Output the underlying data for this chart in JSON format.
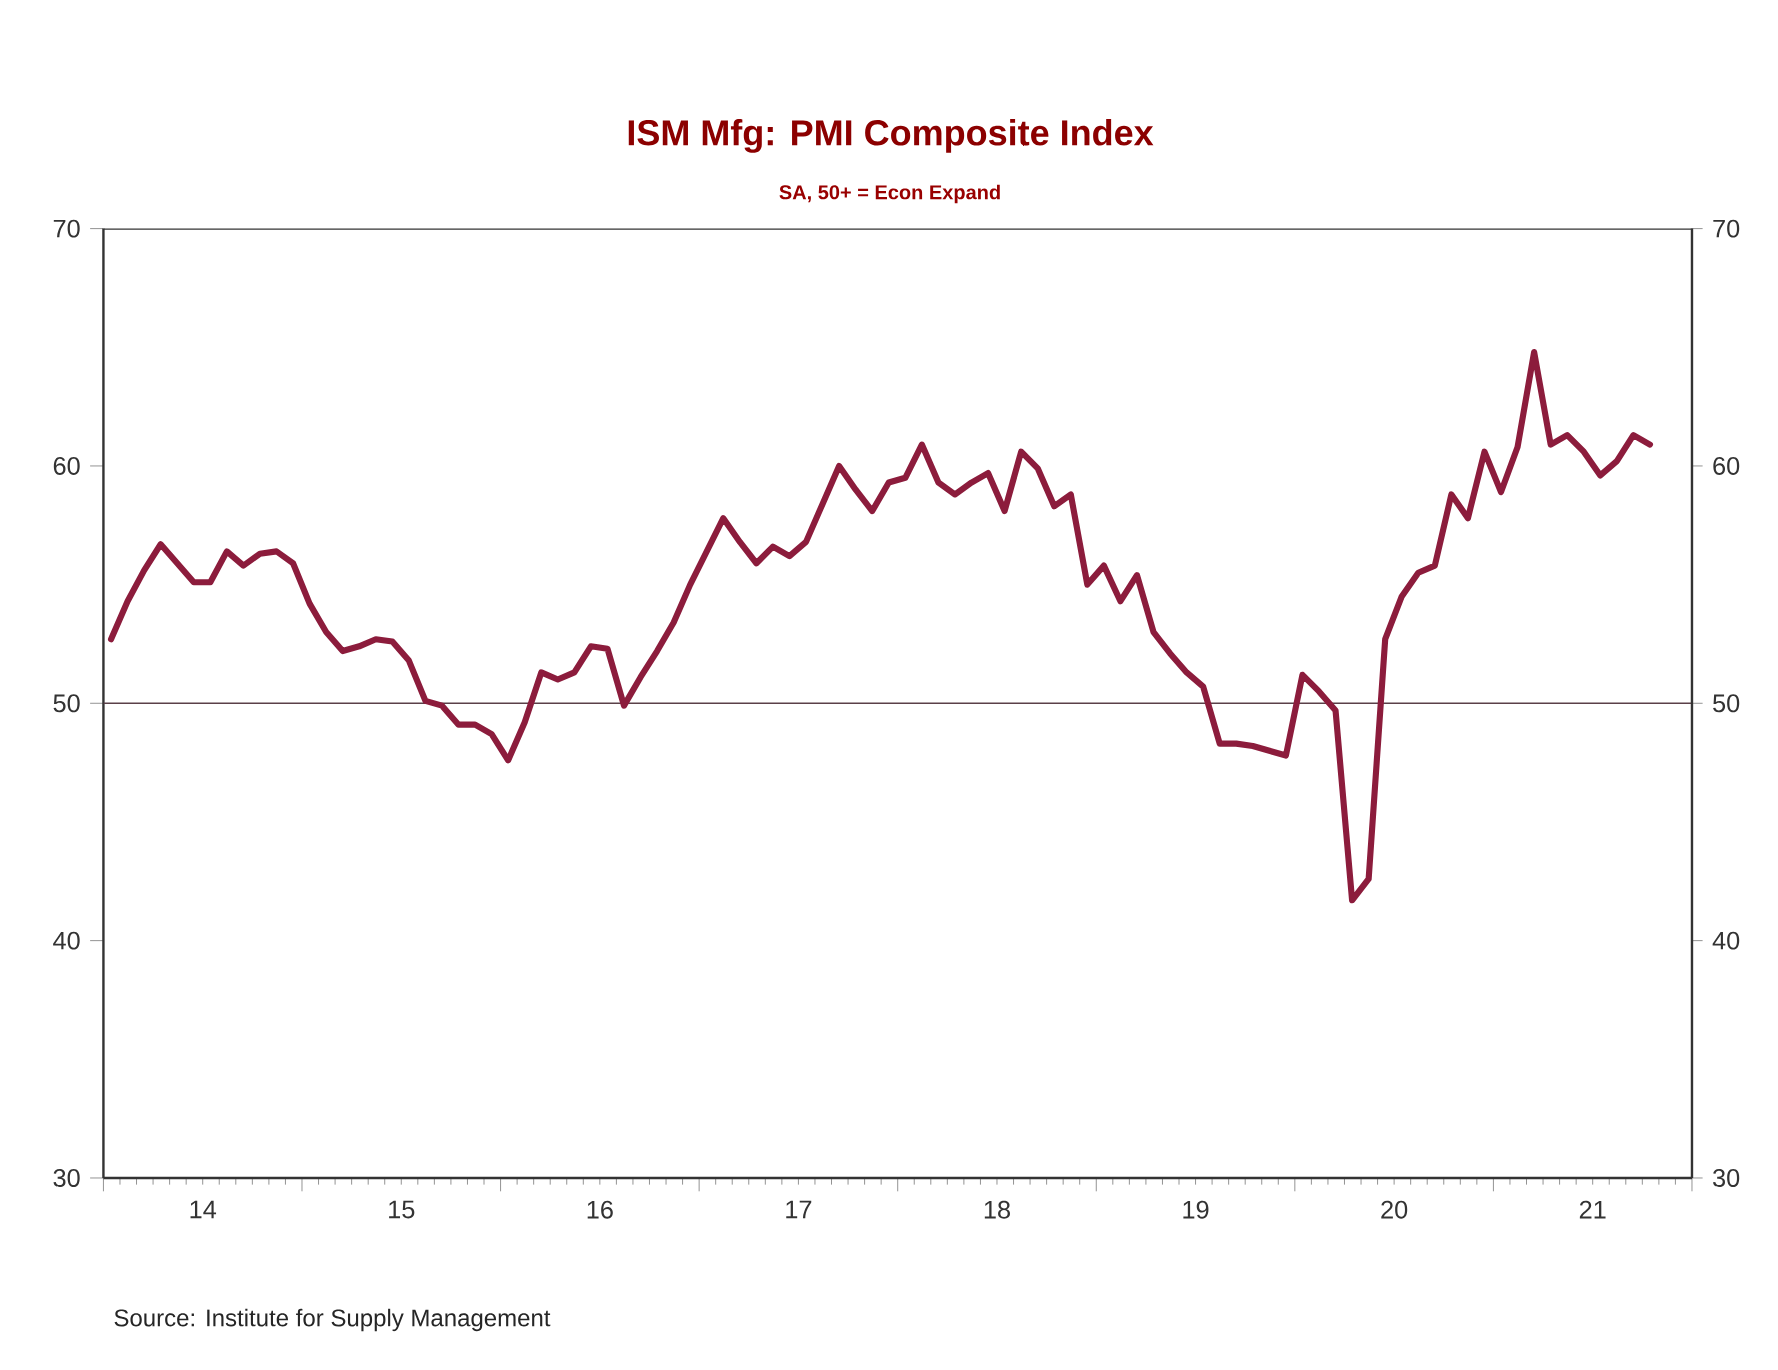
{
  "chart_data": {
    "type": "line",
    "title": "ISM Mfg: PMI Composite Index",
    "subtitle": "SA, 50+ = Econ Expand",
    "annotations": [
      "Source:  Institute for Supply Management"
    ],
    "x": [
      "2014-01-15",
      "2014-02-15",
      "2014-03-15",
      "2014-04-15",
      "2014-05-15",
      "2014-06-15",
      "2014-07-15",
      "2014-08-15",
      "2014-09-15",
      "2014-10-15",
      "2014-11-15",
      "2014-12-15",
      "2015-01-15",
      "2015-02-15",
      "2015-03-15",
      "2015-04-15",
      "2015-05-15",
      "2015-06-15",
      "2015-07-15",
      "2015-08-15",
      "2015-09-15",
      "2015-10-15",
      "2015-11-15",
      "2015-12-15",
      "2016-01-15",
      "2016-02-15",
      "2016-03-15",
      "2016-04-15",
      "2016-05-15",
      "2016-06-15",
      "2016-07-15",
      "2016-08-15",
      "2016-09-15",
      "2016-10-15",
      "2016-11-15",
      "2016-12-15",
      "2017-01-15",
      "2017-02-15",
      "2017-03-15",
      "2017-04-15",
      "2017-05-15",
      "2017-06-15",
      "2017-07-15",
      "2017-08-15",
      "2017-09-15",
      "2017-10-15",
      "2017-11-15",
      "2017-12-15",
      "2018-01-15",
      "2018-02-15",
      "2018-03-15",
      "2018-04-15",
      "2018-05-15",
      "2018-06-15",
      "2018-07-15",
      "2018-08-15",
      "2018-09-15",
      "2018-10-15",
      "2018-11-15",
      "2018-12-15",
      "2019-01-15",
      "2019-02-15",
      "2019-03-15",
      "2019-04-15",
      "2019-05-15",
      "2019-06-15",
      "2019-07-15",
      "2019-08-15",
      "2019-09-15",
      "2019-10-15",
      "2019-11-15",
      "2019-12-15",
      "2020-01-15",
      "2020-02-15",
      "2020-03-15",
      "2020-04-15",
      "2020-05-15",
      "2020-06-15",
      "2020-07-15",
      "2020-08-15",
      "2020-09-15",
      "2020-10-15",
      "2020-11-15",
      "2020-12-15",
      "2021-01-15",
      "2021-02-15",
      "2021-03-15",
      "2021-04-15",
      "2021-05-15",
      "2021-06-15",
      "2021-07-15",
      "2021-08-15",
      "2021-09-15",
      "2021-10-15"
    ],
    "series": [
      {
        "color": "#8c1c3c",
        "values": [
          52.7,
          54.3,
          55.6,
          56.7,
          55.9,
          55.1,
          55.1,
          56.4,
          55.8,
          56.3,
          56.4,
          55.9,
          54.2,
          53.0,
          52.2,
          52.4,
          52.7,
          52.6,
          51.8,
          50.1,
          49.9,
          49.1,
          49.1,
          48.7,
          47.6,
          49.2,
          51.3,
          51.0,
          51.3,
          52.4,
          52.3,
          49.9,
          51.1,
          52.2,
          53.4,
          55.0,
          56.4,
          57.8,
          56.8,
          55.9,
          56.6,
          56.2,
          56.8,
          58.4,
          60.0,
          59.0,
          58.1,
          59.3,
          59.5,
          60.9,
          59.3,
          58.8,
          59.3,
          59.7,
          58.1,
          60.6,
          59.9,
          58.3,
          58.8,
          55.0,
          55.8,
          54.3,
          55.4,
          53.0,
          52.1,
          51.3,
          50.7,
          48.3,
          48.3,
          48.2,
          48.0,
          47.8,
          51.2,
          50.5,
          49.7,
          41.7,
          42.6,
          52.7,
          54.5,
          55.5,
          55.8,
          58.8,
          57.8,
          60.6,
          58.9,
          60.8,
          64.8,
          60.9,
          61.3,
          60.6,
          59.6,
          60.2,
          61.3,
          60.9
        ]
      }
    ],
    "marker": "none",
    "xlim": [
      "2014-01-01",
      "2022-01-01"
    ],
    "xticks": [
      {
        "value": "2014-01-01",
        "label": null
      },
      {
        "value": "2014-07-01",
        "label": "14"
      },
      {
        "value": "2015-01-01",
        "label": null
      },
      {
        "value": "2015-07-01",
        "label": "15"
      },
      {
        "value": "2016-01-01",
        "label": null
      },
      {
        "value": "2016-07-01",
        "label": "16"
      },
      {
        "value": "2017-01-01",
        "label": null
      },
      {
        "value": "2017-07-01",
        "label": "17"
      },
      {
        "value": "2018-01-01",
        "label": null
      },
      {
        "value": "2018-07-01",
        "label": "18"
      },
      {
        "value": "2019-01-01",
        "label": null
      },
      {
        "value": "2019-07-01",
        "label": "19"
      },
      {
        "value": "2020-01-01",
        "label": null
      },
      {
        "value": "2020-07-01",
        "label": "20"
      },
      {
        "value": "2021-01-01",
        "label": null
      },
      {
        "value": "2021-07-01",
        "label": "21"
      },
      {
        "value": "2022-01-01",
        "label": null
      }
    ],
    "ylim": [
      30,
      70
    ],
    "yticks": [
      30,
      40,
      50,
      60,
      70
    ],
    "y2lim": [
      30,
      70
    ],
    "y2ticks": [
      30,
      40,
      50,
      60,
      70
    ],
    "ref_lines": [
      {
        "axis": "y",
        "value": 50,
        "color": "#5a4048"
      }
    ]
  }
}
